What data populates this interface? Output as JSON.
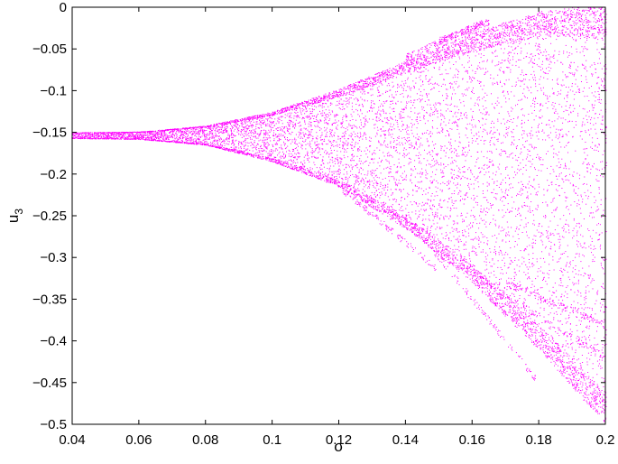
{
  "chart_data": {
    "type": "scatter",
    "title": "",
    "xlabel": "σ",
    "ylabel": "u",
    "ylabel_subscript": "3",
    "xlim": [
      0.04,
      0.2
    ],
    "ylim": [
      -0.5,
      0
    ],
    "xticks": [
      0.04,
      0.06,
      0.08,
      0.1,
      0.12,
      0.14,
      0.16,
      0.18,
      0.2
    ],
    "xtick_labels": [
      "0.04",
      "0.06",
      "0.08",
      "0.1",
      "0.12",
      "0.14",
      "0.16",
      "0.18",
      "0.2"
    ],
    "yticks": [
      0,
      -0.05,
      -0.1,
      -0.15,
      -0.2,
      -0.25,
      -0.3,
      -0.35,
      -0.4,
      -0.45,
      -0.5
    ],
    "ytick_labels": [
      "0",
      "−0.05",
      "−0.1",
      "−0.15",
      "−0.2",
      "−0.25",
      "−0.3",
      "−0.35",
      "−0.4",
      "−0.45",
      "−0.5"
    ],
    "grid": false,
    "legend": "none",
    "point_color": "#ff00ff",
    "series": [
      {
        "points_note_free": true,
        "upper_envelope": [
          [
            0.04,
            -0.15
          ],
          [
            0.06,
            -0.149
          ],
          [
            0.08,
            -0.142
          ],
          [
            0.1,
            -0.125
          ],
          [
            0.12,
            -0.098
          ],
          [
            0.14,
            -0.064
          ],
          [
            0.16,
            -0.03
          ],
          [
            0.18,
            -0.005
          ],
          [
            0.19,
            0.0
          ],
          [
            0.2,
            0.0
          ]
        ],
        "lower_envelope": [
          [
            0.04,
            -0.157
          ],
          [
            0.06,
            -0.158
          ],
          [
            0.08,
            -0.165
          ],
          [
            0.1,
            -0.185
          ],
          [
            0.12,
            -0.215
          ],
          [
            0.14,
            -0.265
          ],
          [
            0.16,
            -0.33
          ],
          [
            0.18,
            -0.41
          ],
          [
            0.2,
            -0.5
          ]
        ],
        "branches": [
          {
            "from": [
              0.12,
              -0.215
            ],
            "to": [
              0.149,
              -0.312
            ]
          },
          {
            "from": [
              0.14,
              -0.25
            ],
            "to": [
              0.179,
              -0.445
            ]
          },
          {
            "from": [
              0.16,
              -0.32
            ],
            "to": [
              0.2,
              -0.42
            ]
          },
          {
            "from": [
              0.17,
              -0.33
            ],
            "to": [
              0.2,
              -0.38
            ]
          },
          {
            "from": [
              0.14,
              -0.06
            ],
            "to": [
              0.163,
              -0.018
            ]
          },
          {
            "from": [
              0.15,
              -0.04
            ],
            "to": [
              0.165,
              -0.017
            ]
          }
        ]
      }
    ]
  }
}
